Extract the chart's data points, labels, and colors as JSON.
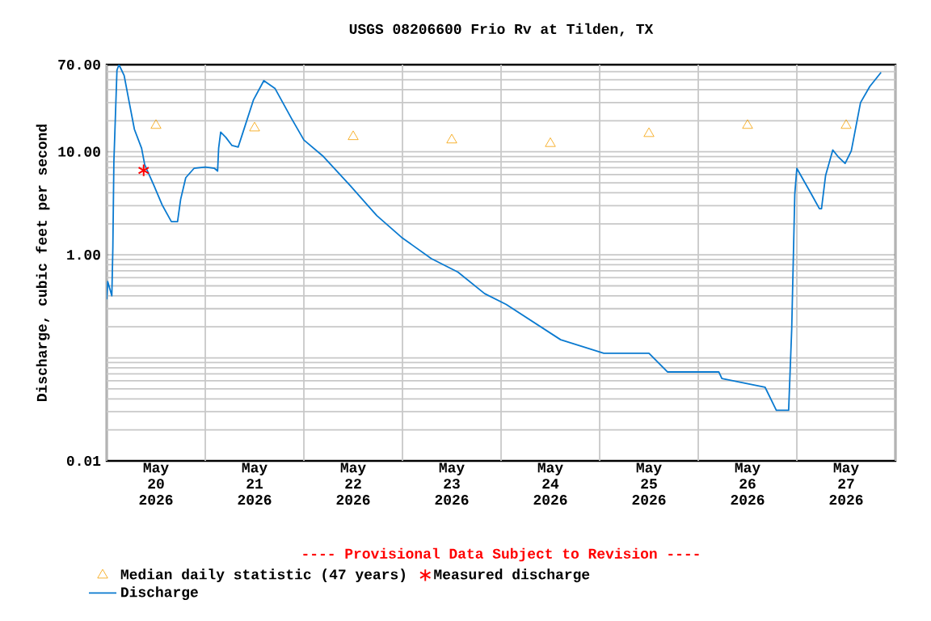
{
  "chart_data": {
    "type": "line",
    "title": "USGS 08206600 Frio Rv at Tilden, TX",
    "ylabel": "Discharge, cubic feet per second",
    "annotations": [
      "---- Provisional Data Subject to Revision ----"
    ],
    "log": "y",
    "grid": true,
    "legend": "bottom",
    "xlim": [
      "2026-05-20T00:00",
      "2026-05-28T00:00"
    ],
    "ylim": [
      0.01,
      70
    ],
    "xticks": [
      {
        "value": "2026-05-20T00:00",
        "label": null
      },
      {
        "value": "2026-05-21T00:00",
        "label": null
      },
      {
        "value": "2026-05-22T00:00",
        "label": null
      },
      {
        "value": "2026-05-23T00:00",
        "label": null
      },
      {
        "value": "2026-05-24T00:00",
        "label": null
      },
      {
        "value": "2026-05-25T00:00",
        "label": null
      },
      {
        "value": "2026-05-26T00:00",
        "label": null
      },
      {
        "value": "2026-05-27T00:00",
        "label": null
      },
      {
        "value": "2026-05-28T00:00",
        "label": null
      },
      {
        "value": "2026-05-20T12:00",
        "label": "May 20 2026"
      },
      {
        "value": "2026-05-21T12:00",
        "label": "May 21 2026"
      },
      {
        "value": "2026-05-22T12:00",
        "label": "May 22 2026"
      },
      {
        "value": "2026-05-23T12:00",
        "label": "May 23 2026"
      },
      {
        "value": "2026-05-24T12:00",
        "label": "May 24 2026"
      },
      {
        "value": "2026-05-25T12:00",
        "label": "May 25 2026"
      },
      {
        "value": "2026-05-26T12:00",
        "label": "May 26 2026"
      },
      {
        "value": "2026-05-27T12:00",
        "label": "May 27 2026"
      }
    ],
    "yticks": [
      {
        "value": 0.01,
        "label": "0.01"
      },
      {
        "value": 1,
        "label": "1.00"
      },
      {
        "value": 10,
        "label": "10.00"
      },
      {
        "value": 70,
        "label": "70.00"
      },
      {
        "value": 0.02,
        "label": null
      },
      {
        "value": 0.03,
        "label": null
      },
      {
        "value": 0.04,
        "label": null
      },
      {
        "value": 0.05,
        "label": null
      },
      {
        "value": 0.06,
        "label": null
      },
      {
        "value": 0.07,
        "label": null
      },
      {
        "value": 0.08,
        "label": null
      },
      {
        "value": 0.09,
        "label": null
      },
      {
        "value": 0.1,
        "label": null
      },
      {
        "value": 0.2,
        "label": null
      },
      {
        "value": 0.3,
        "label": null
      },
      {
        "value": 0.4,
        "label": null
      },
      {
        "value": 0.5,
        "label": null
      },
      {
        "value": 0.6,
        "label": null
      },
      {
        "value": 0.7,
        "label": null
      },
      {
        "value": 0.8,
        "label": null
      },
      {
        "value": 0.9,
        "label": null
      },
      {
        "value": 2,
        "label": null
      },
      {
        "value": 3,
        "label": null
      },
      {
        "value": 4,
        "label": null
      },
      {
        "value": 5,
        "label": null
      },
      {
        "value": 6,
        "label": null
      },
      {
        "value": 7,
        "label": null
      },
      {
        "value": 8,
        "label": null
      },
      {
        "value": 9,
        "label": null
      },
      {
        "value": 20,
        "label": null
      },
      {
        "value": 30,
        "label": null
      },
      {
        "value": 40,
        "label": null
      },
      {
        "value": 50,
        "label": null
      },
      {
        "value": 60,
        "label": null
      }
    ],
    "series": [
      {
        "name": "Median daily statistic (47 years)",
        "type": "scatter",
        "marker": "triangle",
        "color": "#f5a000",
        "x": [
          "2026-05-20T12:00",
          "2026-05-21T12:00",
          "2026-05-22T12:00",
          "2026-05-23T12:00",
          "2026-05-24T12:00",
          "2026-05-25T12:00",
          "2026-05-26T12:00",
          "2026-05-27T12:00"
        ],
        "values": [
          18,
          17,
          14,
          13,
          12,
          15,
          18,
          18
        ]
      },
      {
        "name": "Measured discharge",
        "type": "scatter",
        "marker": "cross",
        "color": "#ff0000",
        "x": [
          "2026-05-20T09:00"
        ],
        "values": [
          6.6
        ]
      },
      {
        "name": "Discharge",
        "type": "line",
        "marker": "none",
        "color": "#0a7ad0",
        "x": [
          "2026-05-20T00:00",
          "2026-05-20T00:15",
          "2026-05-20T01:15",
          "2026-05-20T01:30",
          "2026-05-20T01:45",
          "2026-05-20T02:30",
          "2026-05-20T03:00",
          "2026-05-20T04:15",
          "2026-05-20T05:30",
          "2026-05-20T06:45",
          "2026-05-20T08:30",
          "2026-05-20T09:15",
          "2026-05-20T11:30",
          "2026-05-20T13:30",
          "2026-05-20T15:45",
          "2026-05-20T17:15",
          "2026-05-20T18:00",
          "2026-05-20T19:15",
          "2026-05-20T21:15",
          "2026-05-21T00:00",
          "2026-05-21T02:15",
          "2026-05-21T03:00",
          "2026-05-21T03:15",
          "2026-05-21T03:45",
          "2026-05-21T05:00",
          "2026-05-21T06:30",
          "2026-05-21T08:00",
          "2026-05-21T09:00",
          "2026-05-21T11:45",
          "2026-05-21T14:15",
          "2026-05-21T17:00",
          "2026-05-21T21:00",
          "2026-05-22T00:00",
          "2026-05-22T04:45",
          "2026-05-22T11:15",
          "2026-05-22T17:45",
          "2026-05-22T23:45",
          "2026-05-23T07:00",
          "2026-05-23T13:30",
          "2026-05-23T20:00",
          "2026-05-24T01:15",
          "2026-05-24T14:30",
          "2026-05-25T01:00",
          "2026-05-25T12:00",
          "2026-05-25T16:30",
          "2026-05-26T05:00",
          "2026-05-26T05:45",
          "2026-05-26T16:15",
          "2026-05-26T19:00",
          "2026-05-26T22:00",
          "2026-05-26T22:45",
          "2026-05-26T23:30",
          "2026-05-27T00:00",
          "2026-05-27T03:30",
          "2026-05-27T05:30",
          "2026-05-27T06:00",
          "2026-05-27T07:00",
          "2026-05-27T08:45",
          "2026-05-27T10:00",
          "2026-05-27T11:45",
          "2026-05-27T13:15",
          "2026-05-27T15:30",
          "2026-05-27T17:45",
          "2026-05-27T20:30"
        ],
        "values": [
          0.37,
          0.55,
          0.4,
          1.17,
          8.0,
          62,
          70,
          55,
          30,
          16.5,
          10.8,
          7.5,
          4.7,
          3.05,
          2.1,
          2.1,
          3.45,
          5.6,
          6.9,
          7.1,
          6.9,
          6.5,
          10.8,
          15.5,
          13.8,
          11.5,
          11.1,
          14.7,
          32,
          49,
          41,
          21,
          13,
          9.0,
          4.7,
          2.4,
          1.48,
          0.92,
          0.68,
          0.42,
          0.33,
          0.15,
          0.111,
          0.111,
          0.073,
          0.073,
          0.063,
          0.052,
          0.031,
          0.031,
          0.19,
          3.9,
          6.9,
          3.9,
          2.8,
          2.8,
          5.9,
          10.4,
          9.0,
          7.7,
          10.2,
          30,
          43,
          59
        ]
      }
    ]
  }
}
